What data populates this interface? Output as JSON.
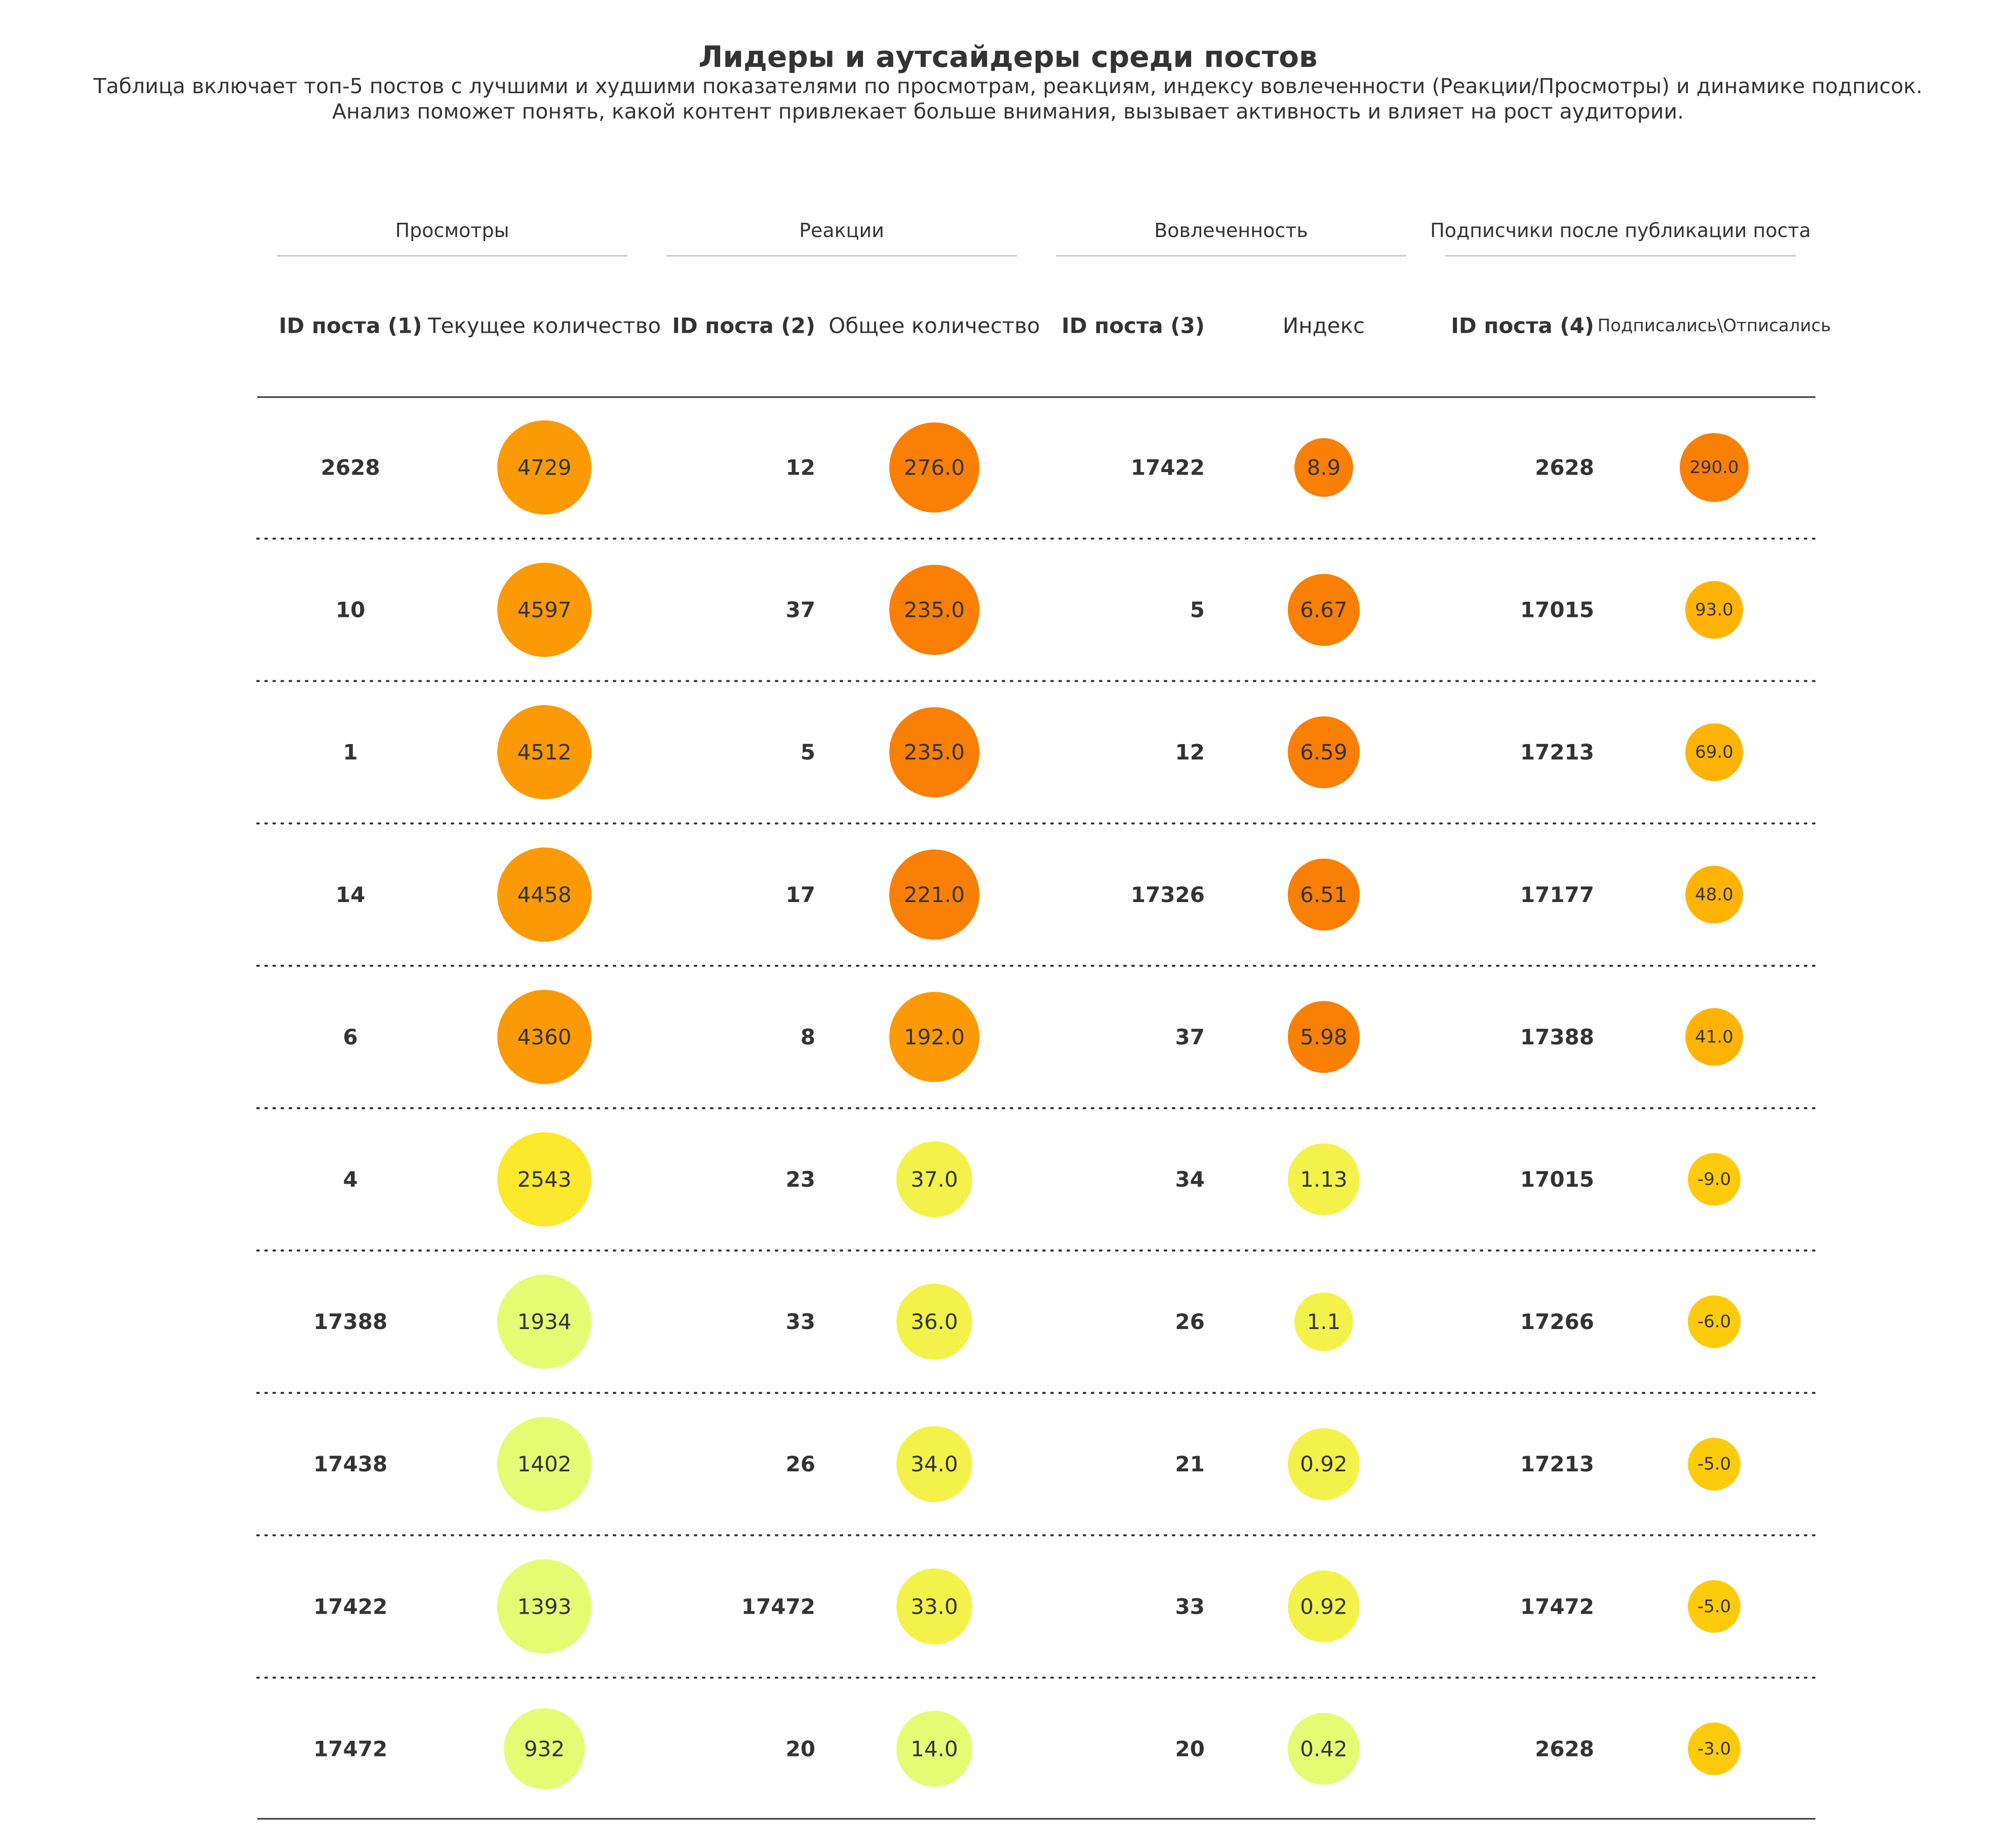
{
  "title": "Лидеры и аутсайдеры среди постов",
  "subtitle_line1": "Таблица включает топ-5 постов с лучшими и худшими показателями по просмотрам, реакциям, индексу вовлеченности (Реакции/Просмотры) и динамике подписок.",
  "subtitle_line2": "Анализ поможет понять, какой контент привлекает больше внимания, вызывает активность и влияет на рост аудитории.",
  "chart_data": {
    "type": "table",
    "groups": [
      {
        "key": "views",
        "header": "Просмотры",
        "id_label": "ID поста (1)",
        "value_label": "Текущее количество",
        "value_label_small": false,
        "decimals": 0,
        "rows": [
          {
            "id": "2628",
            "value": 4729
          },
          {
            "id": "10",
            "value": 4597
          },
          {
            "id": "1",
            "value": 4512
          },
          {
            "id": "14",
            "value": 4458
          },
          {
            "id": "6",
            "value": 4360
          },
          {
            "id": "4",
            "value": 2543
          },
          {
            "id": "17388",
            "value": 1934
          },
          {
            "id": "17438",
            "value": 1402
          },
          {
            "id": "17422",
            "value": 1393
          },
          {
            "id": "17472",
            "value": 932
          }
        ]
      },
      {
        "key": "reactions",
        "header": "Реакции",
        "id_label": "ID поста (2)",
        "value_label": "Общее количество",
        "value_label_small": false,
        "decimals": 1,
        "rows": [
          {
            "id": "12",
            "value": 276.0
          },
          {
            "id": "37",
            "value": 235.0
          },
          {
            "id": "5",
            "value": 235.0
          },
          {
            "id": "17",
            "value": 221.0
          },
          {
            "id": "8",
            "value": 192.0
          },
          {
            "id": "23",
            "value": 37.0
          },
          {
            "id": "33",
            "value": 36.0
          },
          {
            "id": "26",
            "value": 34.0
          },
          {
            "id": "17472",
            "value": 33.0
          },
          {
            "id": "20",
            "value": 14.0
          }
        ]
      },
      {
        "key": "engagement",
        "header": "Вовлеченность",
        "id_label": "ID поста (3)",
        "value_label": "Индекс",
        "value_label_small": false,
        "decimals": null,
        "rows": [
          {
            "id": "17422",
            "value": 8.9
          },
          {
            "id": "5",
            "value": 6.67
          },
          {
            "id": "12",
            "value": 6.59
          },
          {
            "id": "17326",
            "value": 6.51
          },
          {
            "id": "37",
            "value": 5.98
          },
          {
            "id": "34",
            "value": 1.13
          },
          {
            "id": "26",
            "value": 1.1
          },
          {
            "id": "21",
            "value": 0.92
          },
          {
            "id": "33",
            "value": 0.92
          },
          {
            "id": "20",
            "value": 0.42
          }
        ]
      },
      {
        "key": "subscribers",
        "header": "Подписчики после публикации поста",
        "id_label": "ID поста (4)",
        "value_label": "Подписались\\Отписались",
        "value_label_small": true,
        "decimals": 1,
        "rows": [
          {
            "id": "2628",
            "value": 290.0
          },
          {
            "id": "17015",
            "value": 93.0
          },
          {
            "id": "17213",
            "value": 69.0
          },
          {
            "id": "17177",
            "value": 48.0
          },
          {
            "id": "17388",
            "value": 41.0
          },
          {
            "id": "17015",
            "value": -9.0
          },
          {
            "id": "17266",
            "value": -6.0
          },
          {
            "id": "17213",
            "value": -5.0
          },
          {
            "id": "17472",
            "value": -5.0
          },
          {
            "id": "2628",
            "value": -3.0
          }
        ]
      }
    ],
    "colors": {
      "strong": "#f97f05",
      "mid_high": "#fb9a04",
      "mid": "#ffb405",
      "low": "#fecb0c",
      "yellow": "#fce82c",
      "pale": "#f2f24a",
      "palest": "#e5fb74",
      "text": "#333333",
      "rule": "#333333",
      "header_rule": "#c8c8c8"
    }
  }
}
